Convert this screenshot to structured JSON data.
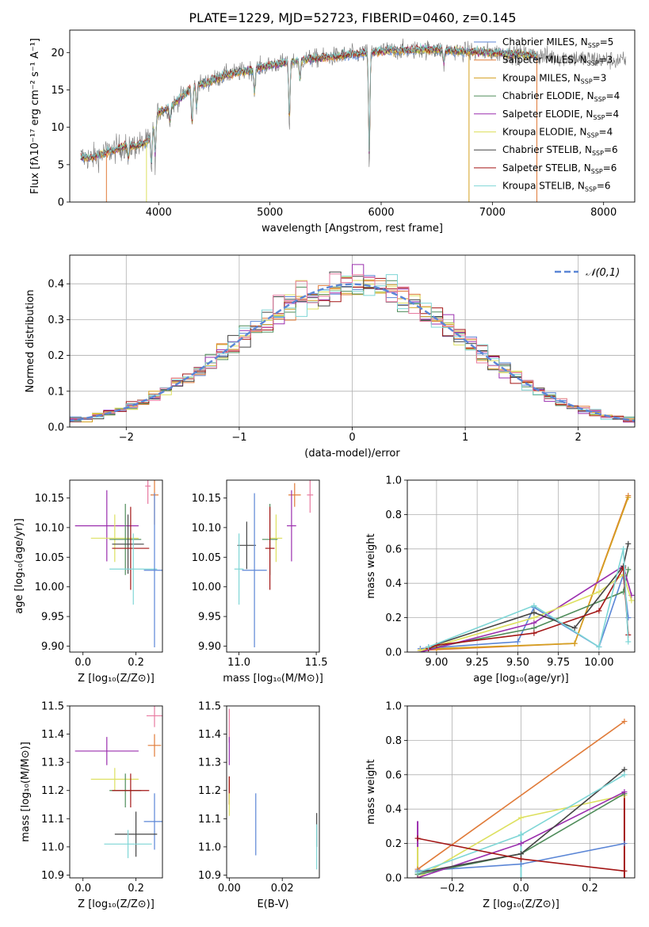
{
  "figure_title": "PLATE=1229, MJD=52723, FIBERID=0460, z=0.145",
  "colors": {
    "Chabrier MILES": "#5b86d6",
    "Salpeter MILES": "#e07b39",
    "Kroupa MILES": "#d4a020",
    "Chabrier ELODIE": "#4f8c5a",
    "Salpeter ELODIE": "#9b2fae",
    "Kroupa ELODIE": "#dde060",
    "Chabrier STELIB": "#444444",
    "Salpeter STELIB": "#a31515",
    "Kroupa STELIB": "#7fd6d6",
    "extra_pink": "#e87aa0",
    "gaussian": "#5b86d6"
  },
  "chart_data": [
    {
      "id": "spectrum",
      "type": "line",
      "title": "PLATE=1229, MJD=52723, FIBERID=0460, z=0.145",
      "xlabel": "wavelength [Angstrom, rest frame]",
      "ylabel": "Flux [fλ10⁻¹⁷ erg cm⁻² s⁻¹ A⁻¹]",
      "xlim": [
        3200,
        8280
      ],
      "ylim": [
        0,
        23
      ],
      "xticks": [
        4000,
        5000,
        6000,
        7000,
        8000
      ],
      "yticks": [
        0,
        5,
        10,
        15,
        20
      ],
      "legend_position": "top-right",
      "legend": [
        "Chabrier MILES, N_SSP=5",
        "Salpeter MILES, N_SSP=3",
        "Kroupa MILES, N_SSP=3",
        "Chabrier ELODIE, N_SSP=4",
        "Salpeter ELODIE, N_SSP=4",
        "Kroupa ELODIE, N_SSP=4",
        "Chabrier STELIB, N_SSP=6",
        "Salpeter STELIB, N_SSP=6",
        "Kroupa STELIB, N_SSP=6"
      ],
      "series_key": [
        "Chabrier MILES",
        "Salpeter MILES",
        "Kroupa MILES",
        "Chabrier ELODIE",
        "Salpeter ELODIE",
        "Kroupa ELODIE",
        "Chabrier STELIB",
        "Salpeter STELIB",
        "Kroupa STELIB"
      ],
      "continuum": {
        "x": [
          3300,
          3400,
          3500,
          3600,
          3700,
          3800,
          3900,
          4000,
          4100,
          4200,
          4300,
          4400,
          4600,
          4800,
          5000,
          5200,
          5400,
          5600,
          5800,
          6000,
          6200,
          6400,
          6600,
          6800,
          7000,
          7200,
          7400,
          7600,
          7800,
          8000,
          8200
        ],
        "y": [
          6.0,
          5.9,
          6.5,
          7.0,
          7.5,
          7.5,
          8.0,
          12.0,
          12.6,
          14.0,
          15.5,
          15.8,
          17.0,
          17.6,
          18.3,
          18.8,
          19.2,
          19.5,
          19.8,
          20.2,
          20.3,
          20.4,
          20.3,
          20.1,
          20.0,
          19.8,
          19.6,
          19.4,
          19.2,
          19.0,
          18.9
        ]
      },
      "observed_flux_range": [
        3300,
        8200
      ],
      "model_flux_range": [
        3300,
        7400
      ]
    },
    {
      "id": "residuals",
      "type": "histogram",
      "xlabel": "(data-model)/error",
      "ylabel": "Normed distribution",
      "xlim": [
        -2.5,
        2.5
      ],
      "ylim": [
        0,
        0.48
      ],
      "xticks": [
        -2,
        -1,
        0,
        1,
        2
      ],
      "yticks": [
        0.0,
        0.1,
        0.2,
        0.3,
        0.4
      ],
      "bin_width": 0.1,
      "legend_label": "𝒩(0,1)",
      "legend_position": "top-right",
      "gaussian": {
        "mean": 0,
        "sigma": 1
      }
    },
    {
      "id": "age-vs-Z",
      "type": "errorbar",
      "xlabel": "Z [log₁₀(Z/Z⊙)]",
      "ylabel": "age  [log₁₀(age/yr)]",
      "xlim": [
        -0.05,
        0.3
      ],
      "ylim": [
        9.89,
        10.18
      ],
      "xticks": [
        0.0,
        0.2
      ],
      "yticks": [
        9.9,
        9.95,
        10.0,
        10.05,
        10.1,
        10.15
      ],
      "points": [
        {
          "series": "Salpeter MILES",
          "x": 0.27,
          "y": 10.155,
          "xerr": 0.015,
          "yerr": 0.05
        },
        {
          "series": "extra_pink",
          "x": 0.245,
          "y": 10.17,
          "xerr": 0.01,
          "yerr": 0.03
        },
        {
          "series": "Salpeter ELODIE",
          "x": 0.09,
          "y": 10.103,
          "xerr": 0.12,
          "yerr": 0.06
        },
        {
          "series": "Kroupa ELODIE",
          "x": 0.12,
          "y": 10.082,
          "xerr": 0.09,
          "yerr": 0.04
        },
        {
          "series": "Chabrier ELODIE",
          "x": 0.16,
          "y": 10.08,
          "xerr": 0.06,
          "yerr": 0.06
        },
        {
          "series": "Chabrier STELIB",
          "x": 0.17,
          "y": 10.072,
          "xerr": 0.06,
          "yerr": 0.05
        },
        {
          "series": "Salpeter STELIB",
          "x": 0.18,
          "y": 10.065,
          "xerr": 0.07,
          "yerr": 0.07
        },
        {
          "series": "Kroupa STELIB",
          "x": 0.19,
          "y": 10.03,
          "xerr": 0.09,
          "yerr": 0.06
        },
        {
          "series": "Chabrier MILES",
          "x": 0.27,
          "y": 10.028,
          "xerr": 0.04,
          "yerr": 0.13
        }
      ]
    },
    {
      "id": "age-vs-mass",
      "type": "errorbar",
      "xlabel": "mass [log₁₀(M/M⊙)]",
      "ylabel": "",
      "xlim": [
        10.92,
        11.52
      ],
      "ylim": [
        9.89,
        10.18
      ],
      "xticks": [
        11.0,
        11.5
      ],
      "yticks": [
        9.9,
        9.95,
        10.0,
        10.05,
        10.1,
        10.15
      ],
      "points": [
        {
          "series": "Salpeter MILES",
          "x": 11.36,
          "y": 10.155,
          "xerr": 0.04,
          "yerr": 0.02
        },
        {
          "series": "extra_pink",
          "x": 11.46,
          "y": 10.155,
          "xerr": 0.02,
          "yerr": 0.03
        },
        {
          "series": "Salpeter ELODIE",
          "x": 11.34,
          "y": 10.103,
          "xerr": 0.03,
          "yerr": 0.06
        },
        {
          "series": "Kroupa ELODIE",
          "x": 11.24,
          "y": 10.082,
          "xerr": 0.04,
          "yerr": 0.04
        },
        {
          "series": "Chabrier ELODIE",
          "x": 11.2,
          "y": 10.08,
          "xerr": 0.05,
          "yerr": 0.06
        },
        {
          "series": "Chabrier STELIB",
          "x": 11.05,
          "y": 10.07,
          "xerr": 0.06,
          "yerr": 0.04
        },
        {
          "series": "Salpeter STELIB",
          "x": 11.2,
          "y": 10.065,
          "xerr": 0.03,
          "yerr": 0.07
        },
        {
          "series": "Kroupa STELIB",
          "x": 11.0,
          "y": 10.03,
          "xerr": 0.03,
          "yerr": 0.06
        },
        {
          "series": "Chabrier MILES",
          "x": 11.1,
          "y": 10.028,
          "xerr": 0.08,
          "yerr": 0.13
        }
      ]
    },
    {
      "id": "massweight-vs-age",
      "type": "line",
      "xlabel": "age  [log₁₀(age/yr)]",
      "ylabel": "mass weight",
      "xlim": [
        8.82,
        10.22
      ],
      "ylim": [
        0,
        1.0
      ],
      "xticks": [
        9.0,
        9.25,
        9.5,
        9.75,
        10.0
      ],
      "yticks": [
        0.0,
        0.2,
        0.4,
        0.6,
        0.8,
        1.0
      ],
      "series": [
        {
          "series": "Salpeter MILES",
          "x": [
            8.9,
            9.85,
            10.18
          ],
          "y": [
            0.01,
            0.05,
            0.91
          ]
        },
        {
          "series": "Chabrier MILES",
          "x": [
            8.9,
            9.5,
            9.6,
            10.0,
            10.15,
            10.18
          ],
          "y": [
            0.02,
            0.06,
            0.26,
            0.03,
            0.45,
            0.2
          ]
        },
        {
          "series": "Kroupa MILES",
          "x": [
            8.9,
            9.0,
            9.85,
            10.18
          ],
          "y": [
            0.01,
            0.02,
            0.05,
            0.9
          ]
        },
        {
          "series": "Chabrier ELODIE",
          "x": [
            8.95,
            9.6,
            10.15,
            10.18
          ],
          "y": [
            0.02,
            0.14,
            0.35,
            0.48
          ]
        },
        {
          "series": "Salpeter ELODIE",
          "x": [
            8.9,
            9.6,
            10.15,
            10.2
          ],
          "y": [
            0.0,
            0.17,
            0.5,
            0.33
          ]
        },
        {
          "series": "Kroupa ELODIE",
          "x": [
            8.9,
            9.6,
            10.0,
            10.15,
            10.2
          ],
          "y": [
            0.01,
            0.2,
            0.35,
            0.45,
            0.3
          ]
        },
        {
          "series": "Chabrier STELIB",
          "x": [
            8.95,
            9.6,
            9.85,
            10.15,
            10.18
          ],
          "y": [
            0.03,
            0.23,
            0.14,
            0.5,
            0.63
          ]
        },
        {
          "series": "Salpeter STELIB",
          "x": [
            8.95,
            9.0,
            9.6,
            10.0,
            10.15,
            10.18
          ],
          "y": [
            0.02,
            0.04,
            0.11,
            0.24,
            0.49,
            0.1
          ]
        },
        {
          "series": "Kroupa STELIB",
          "x": [
            8.95,
            9.6,
            10.0,
            10.15,
            10.18
          ],
          "y": [
            0.03,
            0.27,
            0.03,
            0.6,
            0.06
          ]
        }
      ]
    },
    {
      "id": "mass-vs-Z",
      "type": "errorbar",
      "xlabel": "Z [log₁₀(Z/Z⊙)]",
      "ylabel": "mass [log₁₀(M/M⊙)]",
      "xlim": [
        -0.05,
        0.3
      ],
      "ylim": [
        10.89,
        11.5
      ],
      "xticks": [
        0.0,
        0.2
      ],
      "yticks": [
        10.9,
        11.0,
        11.1,
        11.2,
        11.3,
        11.4,
        11.5
      ],
      "points": [
        {
          "series": "extra_pink",
          "x": 0.27,
          "y": 11.465,
          "xerr": 0.03,
          "yerr": 0.04
        },
        {
          "series": "Salpeter MILES",
          "x": 0.27,
          "y": 11.36,
          "xerr": 0.025,
          "yerr": 0.04
        },
        {
          "series": "Salpeter ELODIE",
          "x": 0.09,
          "y": 11.34,
          "xerr": 0.12,
          "yerr": 0.05
        },
        {
          "series": "Kroupa ELODIE",
          "x": 0.12,
          "y": 11.24,
          "xerr": 0.09,
          "yerr": 0.04
        },
        {
          "series": "Chabrier ELODIE",
          "x": 0.16,
          "y": 11.2,
          "xerr": 0.06,
          "yerr": 0.06
        },
        {
          "series": "Salpeter STELIB",
          "x": 0.18,
          "y": 11.2,
          "xerr": 0.07,
          "yerr": 0.06
        },
        {
          "series": "Chabrier MILES",
          "x": 0.27,
          "y": 11.09,
          "xerr": 0.04,
          "yerr": 0.1
        },
        {
          "series": "Chabrier STELIB",
          "x": 0.2,
          "y": 11.045,
          "xerr": 0.08,
          "yerr": 0.08
        },
        {
          "series": "Kroupa STELIB",
          "x": 0.17,
          "y": 11.01,
          "xerr": 0.09,
          "yerr": 0.05
        }
      ]
    },
    {
      "id": "mass-vs-EBV",
      "type": "errorbar",
      "xlabel": "E(B-V)",
      "ylabel": "",
      "xlim": [
        -0.001,
        0.034
      ],
      "ylim": [
        10.89,
        11.5
      ],
      "xticks": [
        0.0,
        0.02
      ],
      "yticks": [
        10.9,
        11.0,
        11.1,
        11.2,
        11.3,
        11.4,
        11.5
      ],
      "points": [
        {
          "series": "extra_pink",
          "x": 0.0,
          "y": 11.43,
          "xerr": 0.0,
          "yerr": 0.06
        },
        {
          "series": "Salpeter ELODIE",
          "x": 0.0,
          "y": 11.34,
          "xerr": 0.0,
          "yerr": 0.05
        },
        {
          "series": "Salpeter MILES",
          "x": 0.0,
          "y": 11.2,
          "xerr": 0.0,
          "yerr": 0.05
        },
        {
          "series": "Salpeter STELIB",
          "x": 0.0,
          "y": 11.2,
          "xerr": 0.0,
          "yerr": 0.05
        },
        {
          "series": "Kroupa ELODIE",
          "x": 0.0,
          "y": 11.15,
          "xerr": 0.0,
          "yerr": 0.04
        },
        {
          "series": "Chabrier MILES",
          "x": 0.01,
          "y": 11.08,
          "xerr": 0.0,
          "yerr": 0.11
        },
        {
          "series": "Chabrier STELIB",
          "x": 0.033,
          "y": 11.06,
          "xerr": 0.0,
          "yerr": 0.06
        },
        {
          "series": "Kroupa STELIB",
          "x": 0.033,
          "y": 11.0,
          "xerr": 0.0,
          "yerr": 0.08
        }
      ]
    },
    {
      "id": "massweight-vs-Z",
      "type": "line",
      "xlabel": "Z [log₁₀(Z/Z⊙)]",
      "ylabel": "mass weight",
      "xlim": [
        -0.33,
        0.33
      ],
      "ylim": [
        0,
        1.0
      ],
      "xticks": [
        -0.2,
        0.0,
        0.2
      ],
      "yticks": [
        0.0,
        0.2,
        0.4,
        0.6,
        0.8,
        1.0
      ],
      "series": [
        {
          "series": "Salpeter MILES",
          "x": [
            -0.3,
            0.3
          ],
          "y": [
            0.05,
            0.91
          ]
        },
        {
          "series": "Chabrier MILES",
          "x": [
            -0.3,
            0.0,
            0.3
          ],
          "y": [
            0.04,
            0.08,
            0.2
          ]
        },
        {
          "series": "Kroupa ELODIE",
          "x": [
            -0.3,
            0.0,
            0.3
          ],
          "y": [
            0.0,
            0.35,
            0.48
          ]
        },
        {
          "series": "Chabrier ELODIE",
          "x": [
            -0.3,
            0.0,
            0.3
          ],
          "y": [
            0.02,
            0.14,
            0.49
          ]
        },
        {
          "series": "Salpeter ELODIE",
          "x": [
            -0.3,
            0.0,
            0.3
          ],
          "y": [
            0.0,
            0.2,
            0.5
          ]
        },
        {
          "series": "Chabrier STELIB",
          "x": [
            -0.3,
            0.0,
            0.3
          ],
          "y": [
            0.03,
            0.14,
            0.63
          ]
        },
        {
          "series": "Kroupa STELIB",
          "x": [
            -0.3,
            0.0,
            0.3
          ],
          "y": [
            0.03,
            0.25,
            0.6
          ]
        },
        {
          "series": "Salpeter STELIB",
          "x": [
            -0.3,
            0.0,
            0.3
          ],
          "y": [
            0.23,
            0.11,
            0.04
          ]
        }
      ],
      "verticals": [
        {
          "series": "Salpeter ELODIE",
          "x": -0.3,
          "y": [
            0.0,
            0.33
          ]
        },
        {
          "series": "Kroupa ELODIE",
          "x": -0.3,
          "y": [
            0.0,
            0.18
          ]
        },
        {
          "series": "Chabrier STELIB",
          "x": 0.0,
          "y": [
            0.0,
            0.24
          ]
        },
        {
          "series": "Kroupa STELIB",
          "x": 0.0,
          "y": [
            0.0,
            0.27
          ]
        },
        {
          "series": "Salpeter STELIB",
          "x": 0.3,
          "y": [
            0.0,
            0.5
          ]
        }
      ]
    }
  ]
}
